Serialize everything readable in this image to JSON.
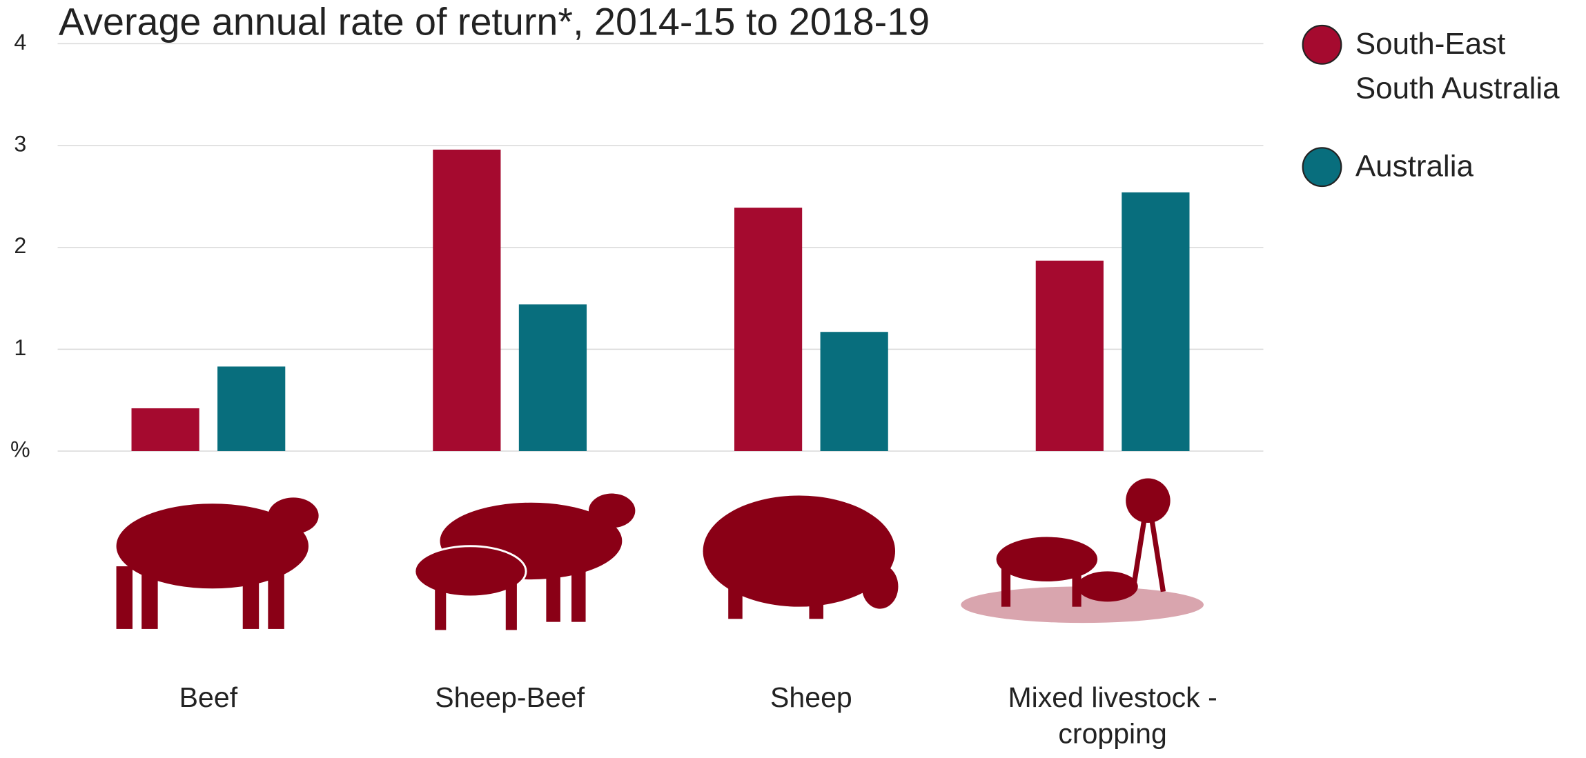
{
  "chart_data": {
    "type": "bar",
    "title": "Average annual rate of return*, 2014-15 to 2018-19",
    "categories": [
      "Beef",
      "Sheep-Beef",
      "Sheep",
      "Mixed livestock -cropping"
    ],
    "series": [
      {
        "name": "South-East South Australia",
        "color": "#a50a2f",
        "values": [
          0.42,
          2.96,
          2.39,
          1.87
        ]
      },
      {
        "name": "Australia",
        "color": "#086e7d",
        "values": [
          0.83,
          1.44,
          1.17,
          2.54
        ]
      }
    ],
    "ylim": [
      0,
      4
    ],
    "yticks": [
      {
        "value": 0,
        "label": "%"
      },
      1,
      2,
      3,
      4
    ],
    "grid": true
  }
}
